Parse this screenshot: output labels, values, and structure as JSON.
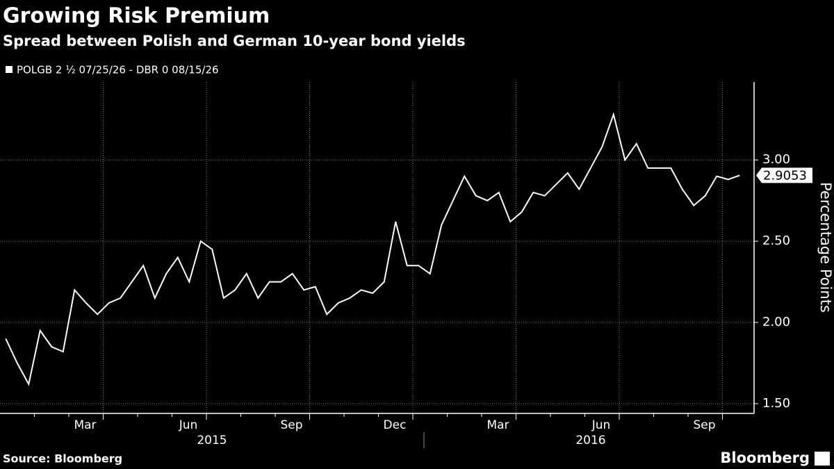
{
  "chart_data": {
    "type": "line",
    "title": "Growing Risk Premium",
    "subtitle": "Spread between Polish and German 10-year bond yields",
    "y_label": "Percentage Points",
    "source": "Source: Bloomberg",
    "brand": "Bloomberg",
    "x": [
      "2014-12",
      "2014-12",
      "2014-12",
      "2015-01",
      "2015-01",
      "2015-01",
      "2015-02",
      "2015-02",
      "2015-02",
      "2015-03",
      "2015-03",
      "2015-03",
      "2015-04",
      "2015-04",
      "2015-04",
      "2015-05",
      "2015-05",
      "2015-05",
      "2015-06",
      "2015-06",
      "2015-06",
      "2015-07",
      "2015-07",
      "2015-07",
      "2015-08",
      "2015-08",
      "2015-08",
      "2015-09",
      "2015-09",
      "2015-09",
      "2015-10",
      "2015-10",
      "2015-10",
      "2015-11",
      "2015-11",
      "2015-11",
      "2015-12",
      "2015-12",
      "2015-12",
      "2016-01",
      "2016-01",
      "2016-01",
      "2016-02",
      "2016-02",
      "2016-02",
      "2016-03",
      "2016-03",
      "2016-03",
      "2016-04",
      "2016-04",
      "2016-04",
      "2016-05",
      "2016-05",
      "2016-05",
      "2016-06",
      "2016-06",
      "2016-06",
      "2016-07",
      "2016-07",
      "2016-07",
      "2016-08",
      "2016-08",
      "2016-08",
      "2016-09",
      "2016-09"
    ],
    "series": [
      {
        "name": "POLGB 2 ½ 07/25/26 - DBR 0 08/15/26",
        "color": "#ffffff",
        "values": [
          1.9,
          1.75,
          1.62,
          1.95,
          1.85,
          1.82,
          2.2,
          2.12,
          2.05,
          2.12,
          2.15,
          2.25,
          2.35,
          2.15,
          2.3,
          2.4,
          2.25,
          2.5,
          2.45,
          2.15,
          2.2,
          2.3,
          2.15,
          2.25,
          2.25,
          2.3,
          2.2,
          2.22,
          2.05,
          2.12,
          2.15,
          2.2,
          2.18,
          2.25,
          2.62,
          2.35,
          2.35,
          2.3,
          2.6,
          2.75,
          2.9,
          2.78,
          2.75,
          2.8,
          2.62,
          2.68,
          2.8,
          2.78,
          2.85,
          2.92,
          2.82,
          2.95,
          3.08,
          3.28,
          3.0,
          3.1,
          2.95,
          2.95,
          2.95,
          2.82,
          2.72,
          2.78,
          2.9,
          2.88,
          2.9053
        ],
        "end_label": "2.9053"
      }
    ],
    "xticks": [
      {
        "value": "2015-03",
        "label": "Mar"
      },
      {
        "value": "2015-06",
        "label": "Jun"
      },
      {
        "value": "2015-09",
        "label": "Sep"
      },
      {
        "value": "2015-12",
        "label": "Dec"
      },
      {
        "value": "2016-03",
        "label": "Mar"
      },
      {
        "value": "2016-06",
        "label": "Jun"
      },
      {
        "value": "2016-09",
        "label": "Sep"
      }
    ],
    "x_group_labels": [
      "2015",
      "2016"
    ],
    "ylim": [
      1.44,
      3.48
    ],
    "yticks": [
      {
        "value": 1.5,
        "label": "1.50"
      },
      {
        "value": 2,
        "label": "2.00"
      },
      {
        "value": 2.5,
        "label": "2.50"
      },
      {
        "value": 3,
        "label": "3.00"
      }
    ],
    "grid": true
  }
}
